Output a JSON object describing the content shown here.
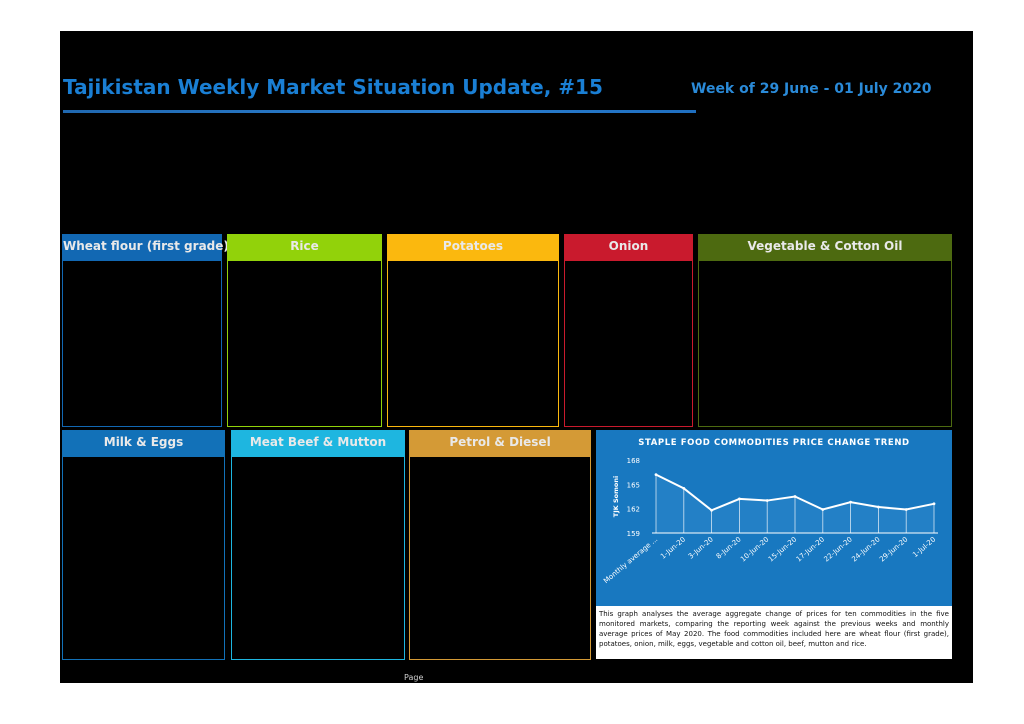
{
  "header": {
    "title": "Tajikistan Weekly Market Situation Update, #15",
    "week": "Week of 29 June - 01 July 2020"
  },
  "panels": [
    {
      "label": "Wheat flour (first grade)",
      "color": "#1268b3"
    },
    {
      "label": "Rice",
      "color": "#92d20a"
    },
    {
      "label": "Potatoes",
      "color": "#fbb80e"
    },
    {
      "label": "Onion",
      "color": "#c91a2d"
    },
    {
      "label": "Vegetable & Cotton Oil",
      "color": "#4d6a10"
    },
    {
      "label": "Milk & Eggs",
      "color": "#1271b8"
    },
    {
      "label": "Meat Beef & Mutton",
      "color": "#1eb6e0"
    },
    {
      "label": "Petrol & Diesel",
      "color": "#d49a36"
    }
  ],
  "chart_data": {
    "type": "area",
    "title": "STAPLE FOOD COMMODITIES PRICE CHANGE TREND",
    "xlabel": "",
    "ylabel": "TJK Somoni",
    "categories": [
      "Monthly average ...",
      "1-Jun-20",
      "3-Jun-20",
      "8-Jun-20",
      "10-Jun-20",
      "15-Jun-20",
      "17-Jun-20",
      "22-Jun-20",
      "24-Jun-20",
      "29-Jun-20",
      "1-Jul-20"
    ],
    "values": [
      166.2,
      164.5,
      161.8,
      163.2,
      163.0,
      163.5,
      161.9,
      162.8,
      162.2,
      161.9,
      162.6
    ],
    "yticks": [
      159,
      162,
      165,
      168
    ],
    "ylim": [
      159,
      168
    ],
    "colors": {
      "background": "#1878c0",
      "line": "#ffffff",
      "fill": "#3a8fd0"
    }
  },
  "note": "This graph analyses the average aggregate change of prices for ten commodities in the five monitored markets, comparing the reporting week against the previous weeks and monthly average prices of May 2020. The food commodities included here are wheat flour (first grade), potatoes, onion, milk, eggs, vegetable and cotton oil, beef, mutton and rice.",
  "footer": {
    "page": "Page"
  }
}
